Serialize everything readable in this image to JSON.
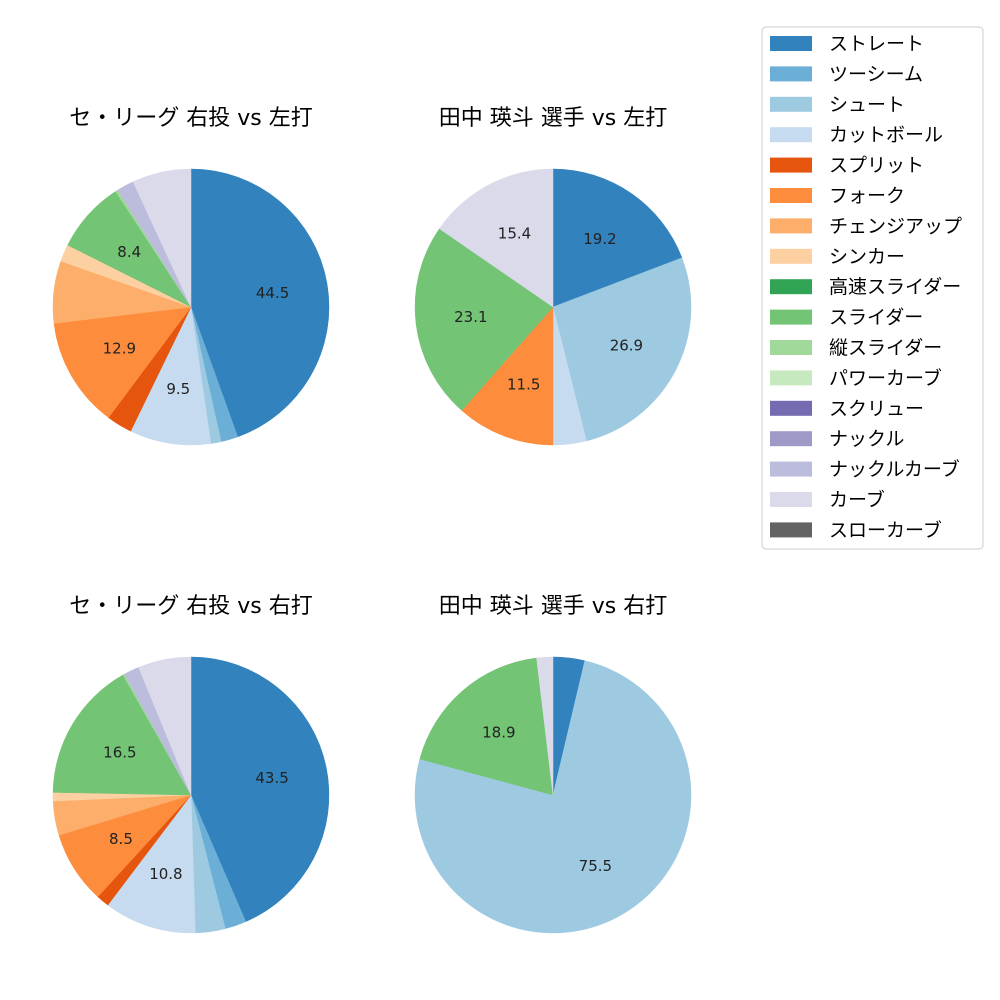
{
  "legend": {
    "items": [
      {
        "name": "ストレート",
        "color": "#3182bd"
      },
      {
        "name": "ツーシーム",
        "color": "#6baed6"
      },
      {
        "name": "シュート",
        "color": "#9ecae1"
      },
      {
        "name": "カットボール",
        "color": "#c6dbef"
      },
      {
        "name": "スプリット",
        "color": "#e6550d"
      },
      {
        "name": "フォーク",
        "color": "#fd8d3c"
      },
      {
        "name": "チェンジアップ",
        "color": "#fdae6b"
      },
      {
        "name": "シンカー",
        "color": "#fdd0a2"
      },
      {
        "name": "高速スライダー",
        "color": "#31a354"
      },
      {
        "name": "スライダー",
        "color": "#74c476"
      },
      {
        "name": "縦スライダー",
        "color": "#a1d99b"
      },
      {
        "name": "パワーカーブ",
        "color": "#c7e9c0"
      },
      {
        "name": "スクリュー",
        "color": "#756bb1"
      },
      {
        "name": "ナックル",
        "color": "#9e9ac8"
      },
      {
        "name": "ナックルカーブ",
        "color": "#bcbddc"
      },
      {
        "name": "カーブ",
        "color": "#dadaeb"
      },
      {
        "name": "スローカーブ",
        "color": "#636363"
      }
    ]
  },
  "chart_data": [
    {
      "type": "pie",
      "title": "セ・リーグ 右投 vs 左打",
      "slices": [
        {
          "name": "ストレート",
          "value": 44.5,
          "label": "44.5"
        },
        {
          "name": "ツーシーム",
          "value": 2.0,
          "label": ""
        },
        {
          "name": "シュート",
          "value": 1.2,
          "label": ""
        },
        {
          "name": "カットボール",
          "value": 9.5,
          "label": "9.5"
        },
        {
          "name": "スプリット",
          "value": 3.0,
          "label": ""
        },
        {
          "name": "フォーク",
          "value": 12.9,
          "label": "12.9"
        },
        {
          "name": "チェンジアップ",
          "value": 7.3,
          "label": ""
        },
        {
          "name": "シンカー",
          "value": 2.0,
          "label": ""
        },
        {
          "name": "スライダー",
          "value": 8.4,
          "label": "8.4"
        },
        {
          "name": "縦スライダー",
          "value": 0.3,
          "label": ""
        },
        {
          "name": "ナックルカーブ",
          "value": 2.0,
          "label": ""
        },
        {
          "name": "カーブ",
          "value": 6.9,
          "label": ""
        }
      ]
    },
    {
      "type": "pie",
      "title": "田中 瑛斗 選手 vs 左打",
      "slices": [
        {
          "name": "ストレート",
          "value": 19.2,
          "label": "19.2"
        },
        {
          "name": "シュート",
          "value": 26.9,
          "label": "26.9"
        },
        {
          "name": "カットボール",
          "value": 3.9,
          "label": ""
        },
        {
          "name": "フォーク",
          "value": 11.5,
          "label": "11.5"
        },
        {
          "name": "スライダー",
          "value": 23.1,
          "label": "23.1"
        },
        {
          "name": "カーブ",
          "value": 15.4,
          "label": "15.4"
        }
      ]
    },
    {
      "type": "pie",
      "title": "セ・リーグ 右投 vs 右打",
      "slices": [
        {
          "name": "ストレート",
          "value": 43.5,
          "label": "43.5"
        },
        {
          "name": "ツーシーム",
          "value": 2.5,
          "label": ""
        },
        {
          "name": "シュート",
          "value": 3.5,
          "label": ""
        },
        {
          "name": "カットボール",
          "value": 10.8,
          "label": "10.8"
        },
        {
          "name": "スプリット",
          "value": 1.5,
          "label": ""
        },
        {
          "name": "フォーク",
          "value": 8.5,
          "label": "8.5"
        },
        {
          "name": "チェンジアップ",
          "value": 4.0,
          "label": ""
        },
        {
          "name": "シンカー",
          "value": 1.0,
          "label": ""
        },
        {
          "name": "スライダー",
          "value": 16.5,
          "label": "16.5"
        },
        {
          "name": "縦スライダー",
          "value": 0.2,
          "label": ""
        },
        {
          "name": "ナックルカーブ",
          "value": 1.8,
          "label": ""
        },
        {
          "name": "カーブ",
          "value": 6.2,
          "label": ""
        }
      ]
    },
    {
      "type": "pie",
      "title": "田中 瑛斗 選手 vs 右打",
      "slices": [
        {
          "name": "ストレート",
          "value": 3.7,
          "label": ""
        },
        {
          "name": "シュート",
          "value": 75.5,
          "label": "75.5"
        },
        {
          "name": "スライダー",
          "value": 18.9,
          "label": "18.9"
        },
        {
          "name": "カーブ",
          "value": 1.9,
          "label": ""
        }
      ]
    }
  ]
}
